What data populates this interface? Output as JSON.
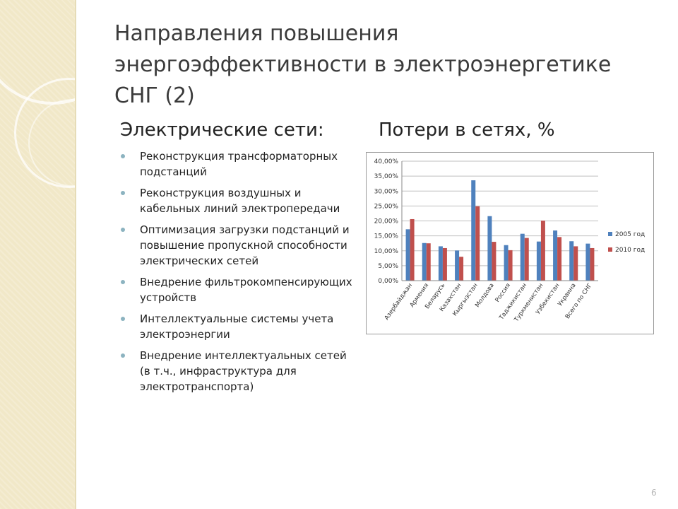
{
  "slide": {
    "title": "Направления повышения энергоэффективности в электроэнергетике СНГ (2)",
    "left_heading": "Электрические сети:",
    "right_heading": "Потери в сетях, %",
    "page_number": "6"
  },
  "bullets": [
    "Реконструкция трансформаторных подстанций",
    "Реконструкция воздушных и кабельных линий электропередачи",
    "Оптимизация загрузки подстанций и повышение пропускной способности электрических сетей",
    "Внедрение фильтрокомпенсирующих устройств",
    "Интеллектуальные системы учета электроэнергии",
    "Внедрение интеллектуальных сетей (в т.ч., инфраструктура для электротранспорта)"
  ],
  "colors": {
    "series_2005": "#4f81bd",
    "series_2010": "#c0504d",
    "bullet": "#8cb3c0",
    "sidebar": "#f1e8c8"
  },
  "chart_data": {
    "type": "bar",
    "title": "Потери в сетях, %",
    "categories": [
      "Азербайджан",
      "Армения",
      "Беларусь",
      "Казахстан",
      "Кыргызстан",
      "Молдова",
      "Россия",
      "Таджикистан",
      "Туркменистан",
      "Узбекистан",
      "Украина",
      "Всего по СНГ"
    ],
    "series": [
      {
        "name": "2005 год",
        "values": [
          17.2,
          12.6,
          11.5,
          10.1,
          33.6,
          21.6,
          11.9,
          15.7,
          13.1,
          16.8,
          13.2,
          12.4
        ]
      },
      {
        "name": "2010 год",
        "values": [
          20.6,
          12.5,
          10.9,
          8.0,
          24.9,
          13.0,
          10.2,
          14.3,
          20.1,
          14.6,
          11.5,
          10.9
        ]
      }
    ],
    "ylim": [
      0,
      40
    ],
    "yticks": [
      "0,00%",
      "5,00%",
      "10,00%",
      "15,00%",
      "20,00%",
      "25,00%",
      "30,00%",
      "35,00%",
      "40,00%"
    ],
    "grid": true,
    "legend_position": "right"
  }
}
